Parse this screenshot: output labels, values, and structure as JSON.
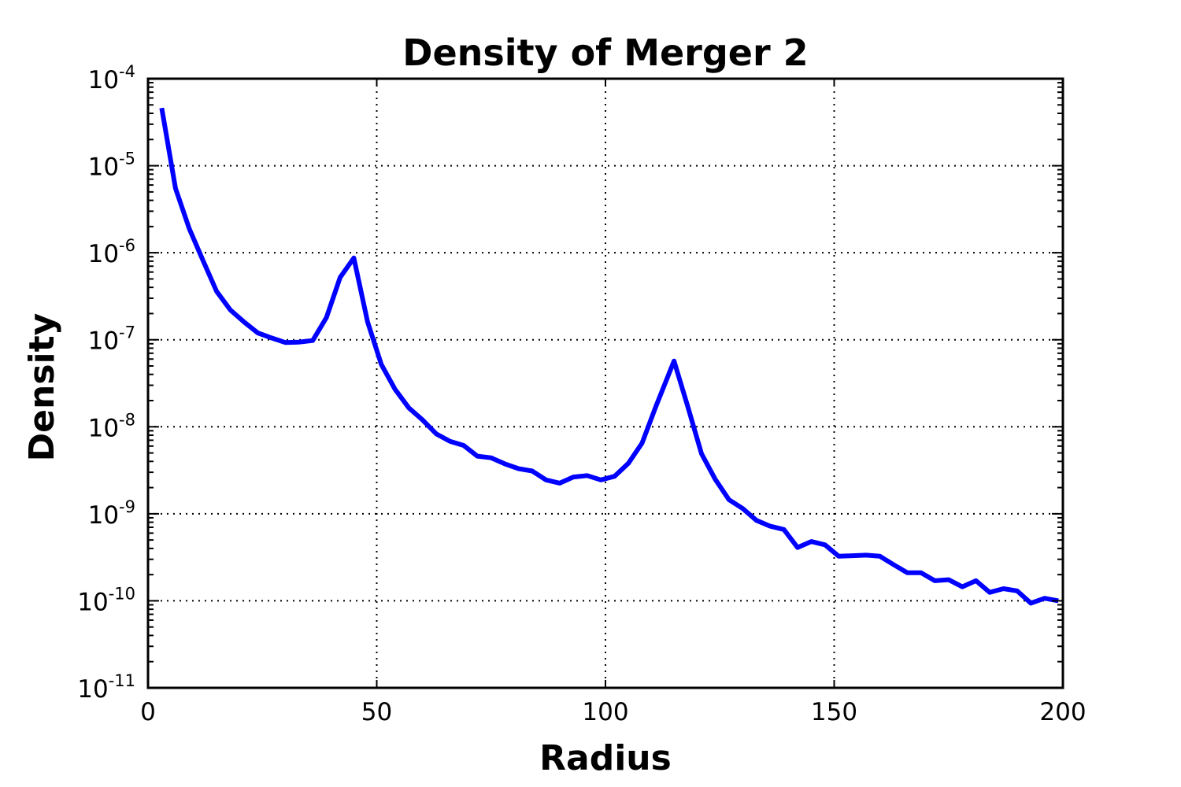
{
  "chart_data": {
    "type": "line",
    "title": "Density of Merger 2",
    "xlabel": "Radius",
    "ylabel": "Density",
    "xlim": [
      0,
      200
    ],
    "ylim": [
      1e-11,
      0.0001
    ],
    "yscale": "log",
    "grid": true,
    "x_ticks": [
      "0",
      "50",
      "100",
      "150",
      "200"
    ],
    "y_ticks": [
      {
        "base": "10",
        "exp": "-11"
      },
      {
        "base": "10",
        "exp": "-10"
      },
      {
        "base": "10",
        "exp": "-9"
      },
      {
        "base": "10",
        "exp": "-8"
      },
      {
        "base": "10",
        "exp": "-7"
      },
      {
        "base": "10",
        "exp": "-6"
      },
      {
        "base": "10",
        "exp": "-5"
      },
      {
        "base": "10",
        "exp": "-4"
      }
    ],
    "line_color": "#0000ff",
    "series": [
      {
        "x": [
          3,
          6,
          9,
          12,
          15,
          18,
          21,
          24,
          27,
          30,
          33,
          36,
          39,
          42,
          45,
          48,
          51,
          54,
          57,
          60,
          63,
          66,
          69,
          72,
          75,
          78,
          81,
          84,
          87,
          90,
          93,
          96,
          99,
          102,
          105,
          108,
          111,
          115,
          118,
          121,
          124,
          127,
          130,
          133,
          136,
          139,
          142,
          145,
          148,
          151,
          154,
          157,
          160,
          163,
          166,
          169,
          172,
          175,
          178,
          181,
          184,
          187,
          190,
          193,
          196,
          199
        ],
        "values": [
          4.6e-05,
          5.5e-06,
          1.9e-06,
          8.2e-07,
          3.6e-07,
          2.2e-07,
          1.6e-07,
          1.2e-07,
          1.05e-07,
          9.3e-08,
          9.4e-08,
          9.8e-08,
          1.8e-07,
          5.2e-07,
          8.7e-07,
          1.6e-07,
          5.2e-08,
          2.7e-08,
          1.65e-08,
          1.2e-08,
          8.3e-09,
          6.8e-09,
          6.1e-09,
          4.6e-09,
          4.4e-09,
          3.75e-09,
          3.3e-09,
          3.1e-09,
          2.45e-09,
          2.25e-09,
          2.65e-09,
          2.75e-09,
          2.45e-09,
          2.7e-09,
          3.8e-09,
          6.5e-09,
          1.7e-08,
          5.7e-08,
          1.7e-08,
          4.9e-09,
          2.5e-09,
          1.45e-09,
          1.15e-09,
          8.4e-10,
          7.2e-10,
          6.6e-10,
          4.1e-10,
          4.8e-10,
          4.4e-10,
          3.25e-10,
          3.3e-10,
          3.35e-10,
          3.25e-10,
          2.6e-10,
          2.1e-10,
          2.1e-10,
          1.7e-10,
          1.75e-10,
          1.45e-10,
          1.7e-10,
          1.25e-10,
          1.38e-10,
          1.3e-10,
          9.4e-11,
          1.07e-10,
          1e-10
        ]
      }
    ]
  }
}
